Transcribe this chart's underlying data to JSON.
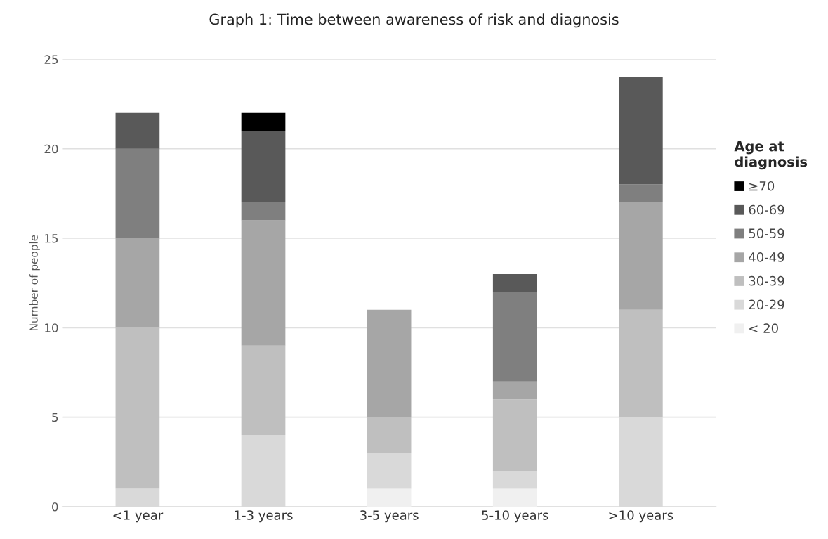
{
  "chart_data": {
    "type": "bar",
    "title": "Graph 1: Time between awareness of risk and diagnosis",
    "ylabel": "Number of people",
    "legend_title": "Age at\ndiagnosis",
    "categories": [
      "<1 year",
      "1-3 years",
      "3-5 years",
      "5-10 years",
      ">10 years"
    ],
    "stacked": true,
    "ylim": [
      0,
      25
    ],
    "yticks": [
      0,
      5,
      10,
      15,
      20,
      25
    ],
    "grid": "y",
    "legend": "right",
    "series": [
      {
        "name": "< 20",
        "color": "#f0f0f0",
        "values": [
          null,
          null,
          1,
          1,
          null
        ]
      },
      {
        "name": "20-29",
        "color": "#d9d9d9",
        "values": [
          1,
          4,
          2,
          1,
          5
        ]
      },
      {
        "name": "30-39",
        "color": "#bfbfbf",
        "values": [
          9,
          5,
          2,
          4,
          6
        ]
      },
      {
        "name": "40-49",
        "color": "#a6a6a6",
        "values": [
          5,
          7,
          6,
          1,
          6
        ]
      },
      {
        "name": "50-59",
        "color": "#7f7f7f",
        "values": [
          5,
          1,
          null,
          5,
          1
        ]
      },
      {
        "name": "60-69",
        "color": "#595959",
        "values": [
          2,
          4,
          null,
          1,
          6
        ]
      },
      {
        "name": "≥70",
        "color": "#000000",
        "values": [
          null,
          1,
          null,
          null,
          null
        ]
      }
    ]
  }
}
